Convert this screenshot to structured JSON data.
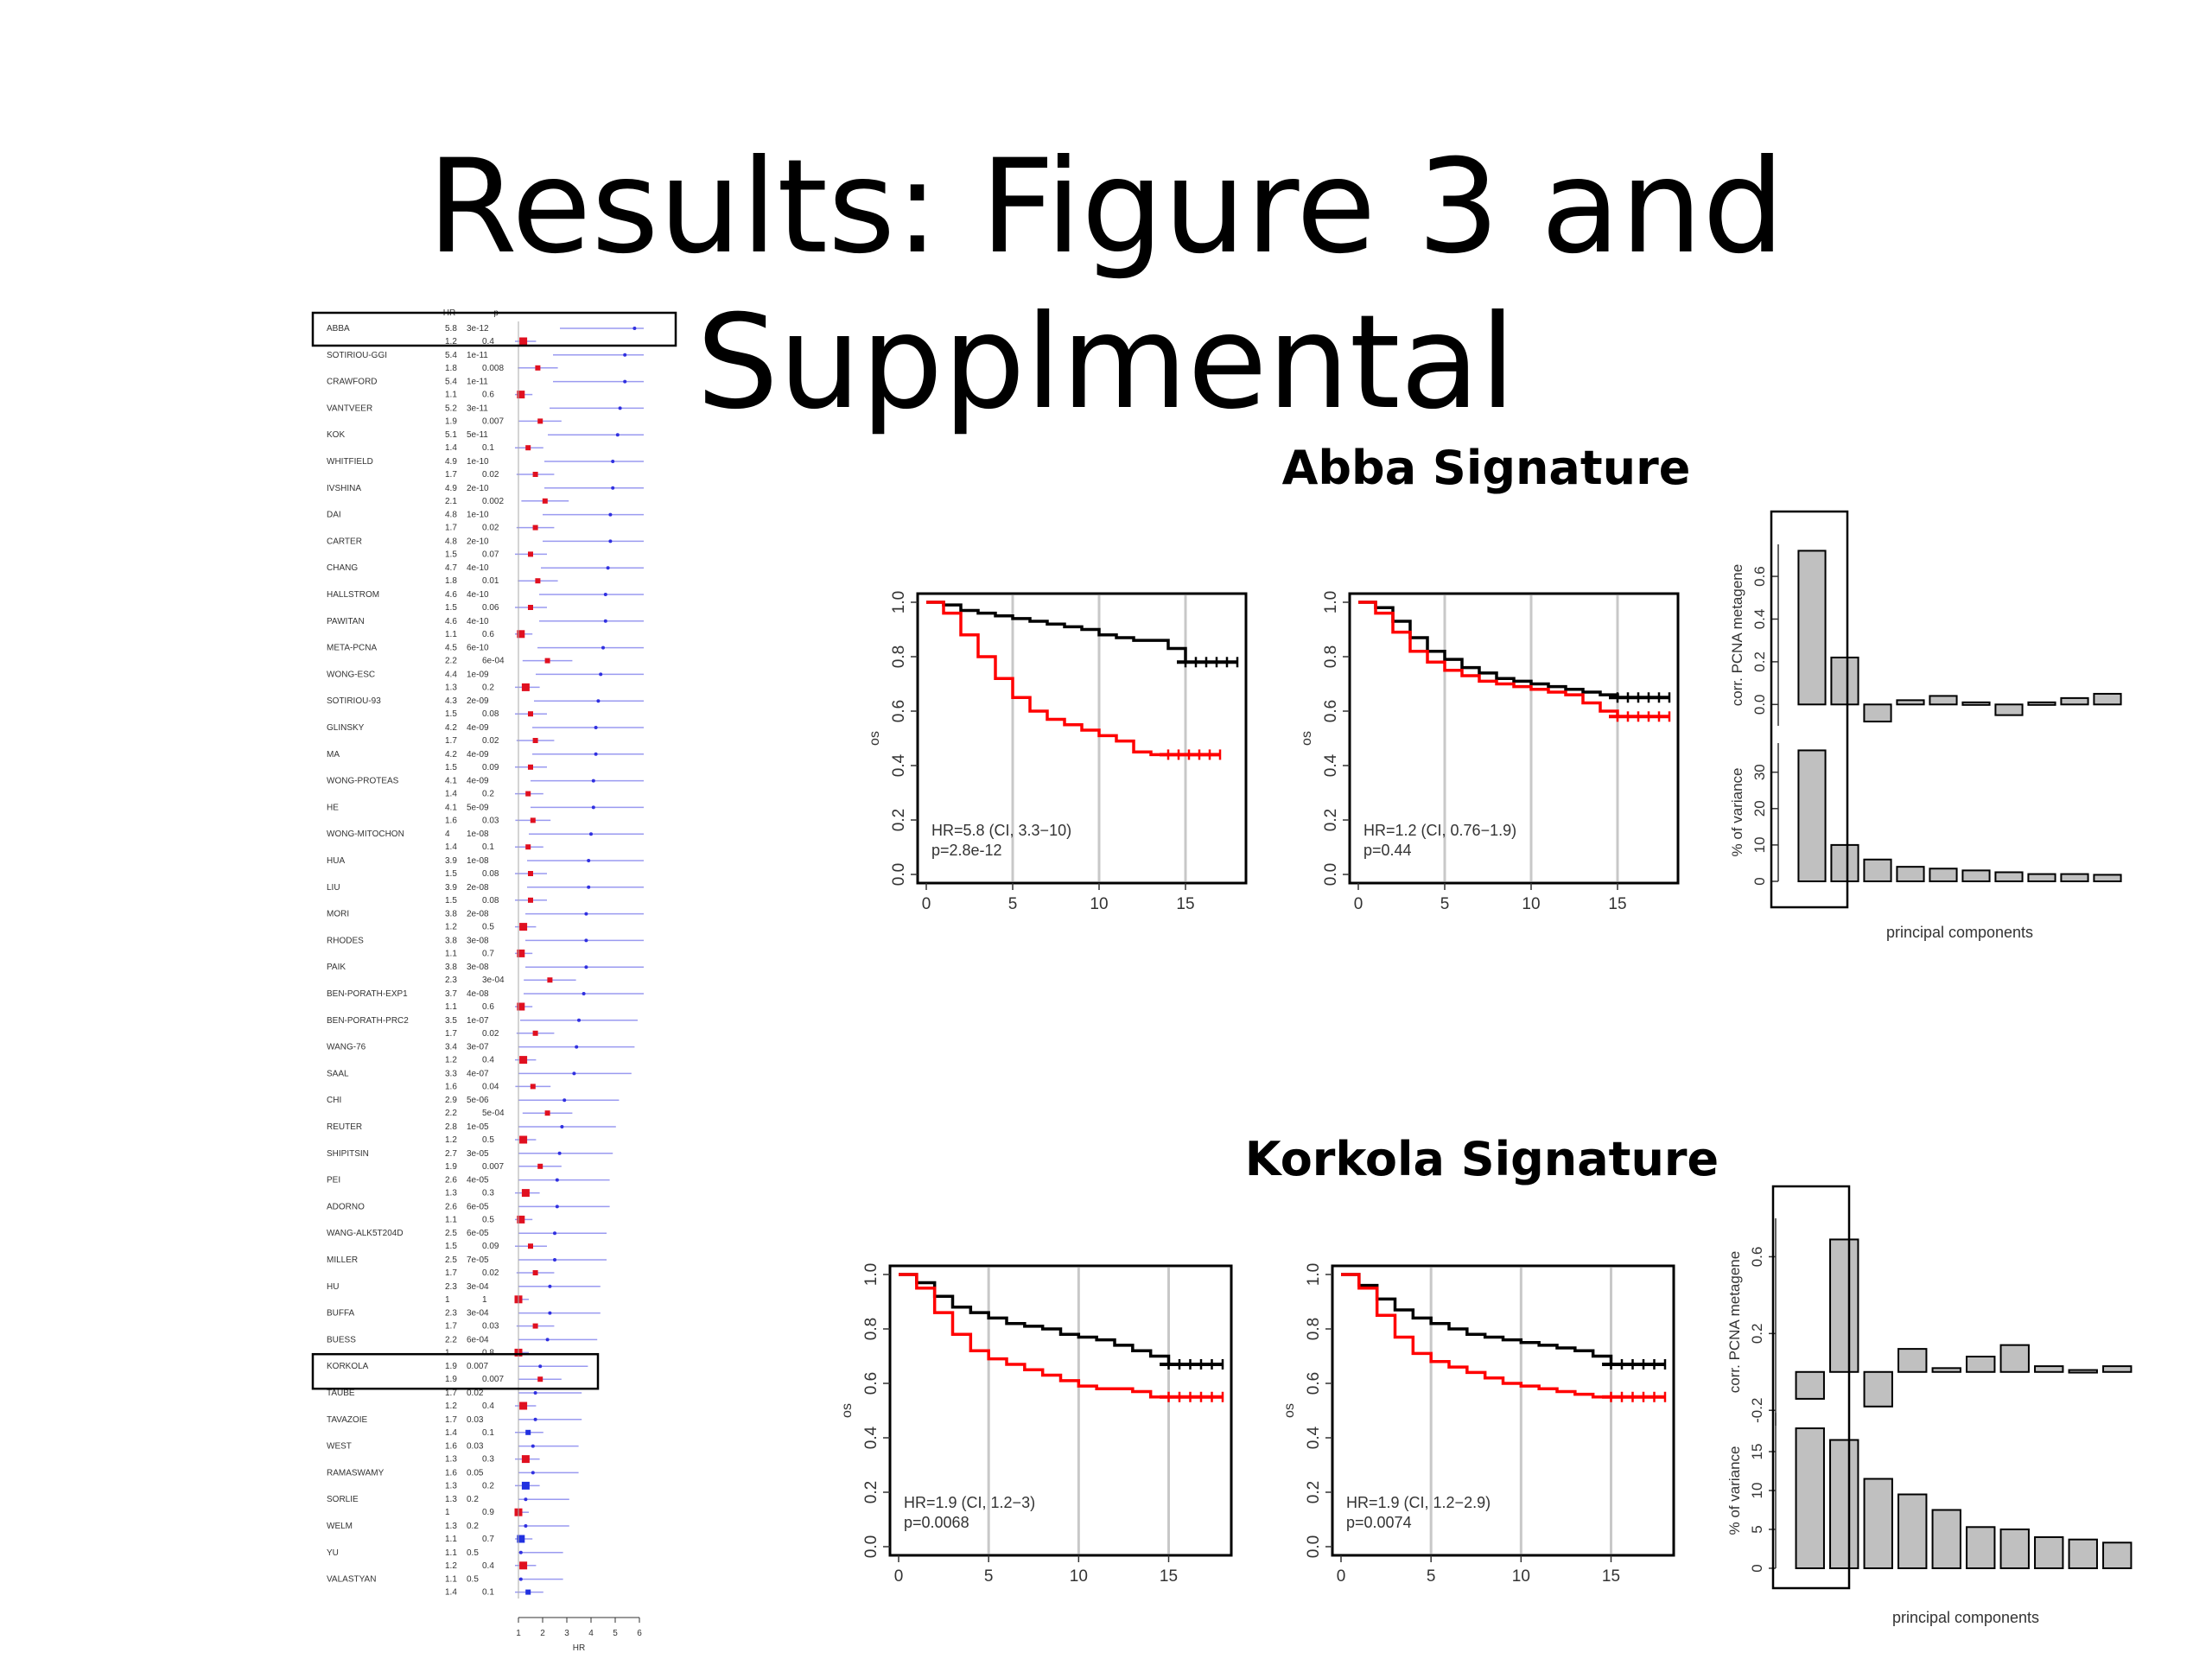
{
  "slide": {
    "title": "Results: Figure 3 and Supplmental"
  },
  "forest": {
    "header_hr": "HR",
    "header_p": "p",
    "xlabel": "HR",
    "xticks": [
      1,
      2,
      3,
      4,
      5,
      6
    ],
    "xlim": [
      1,
      6
    ],
    "highlighted": [
      "ABBA",
      "KORKOLA"
    ],
    "rows": [
      {
        "name": "ABBA",
        "hr1": "5.8",
        "p1": "3e-12",
        "hr2": "1.2",
        "p2": "0.4",
        "h1": 5.8,
        "h2": 1.2,
        "c2": "red"
      },
      {
        "name": "SOTIRIOU-GGI",
        "hr1": "5.4",
        "p1": "1e-11",
        "hr2": "1.8",
        "p2": "0.008",
        "h1": 5.4,
        "h2": 1.8,
        "c2": "red"
      },
      {
        "name": "CRAWFORD",
        "hr1": "5.4",
        "p1": "1e-11",
        "hr2": "1.1",
        "p2": "0.6",
        "h1": 5.4,
        "h2": 1.1,
        "c2": "red"
      },
      {
        "name": "VANTVEER",
        "hr1": "5.2",
        "p1": "3e-11",
        "hr2": "1.9",
        "p2": "0.007",
        "h1": 5.2,
        "h2": 1.9,
        "c2": "red"
      },
      {
        "name": "KOK",
        "hr1": "5.1",
        "p1": "5e-11",
        "hr2": "1.4",
        "p2": "0.1",
        "h1": 5.1,
        "h2": 1.4,
        "c2": "red"
      },
      {
        "name": "WHITFIELD",
        "hr1": "4.9",
        "p1": "1e-10",
        "hr2": "1.7",
        "p2": "0.02",
        "h1": 4.9,
        "h2": 1.7,
        "c2": "red"
      },
      {
        "name": "IVSHINA",
        "hr1": "4.9",
        "p1": "2e-10",
        "hr2": "2.1",
        "p2": "0.002",
        "h1": 4.9,
        "h2": 2.1,
        "c2": "red"
      },
      {
        "name": "DAI",
        "hr1": "4.8",
        "p1": "1e-10",
        "hr2": "1.7",
        "p2": "0.02",
        "h1": 4.8,
        "h2": 1.7,
        "c2": "red"
      },
      {
        "name": "CARTER",
        "hr1": "4.8",
        "p1": "2e-10",
        "hr2": "1.5",
        "p2": "0.07",
        "h1": 4.8,
        "h2": 1.5,
        "c2": "red"
      },
      {
        "name": "CHANG",
        "hr1": "4.7",
        "p1": "4e-10",
        "hr2": "1.8",
        "p2": "0.01",
        "h1": 4.7,
        "h2": 1.8,
        "c2": "red"
      },
      {
        "name": "HALLSTROM",
        "hr1": "4.6",
        "p1": "4e-10",
        "hr2": "1.5",
        "p2": "0.06",
        "h1": 4.6,
        "h2": 1.5,
        "c2": "red"
      },
      {
        "name": "PAWITAN",
        "hr1": "4.6",
        "p1": "4e-10",
        "hr2": "1.1",
        "p2": "0.6",
        "h1": 4.6,
        "h2": 1.1,
        "c2": "red"
      },
      {
        "name": "META-PCNA",
        "hr1": "4.5",
        "p1": "6e-10",
        "hr2": "2.2",
        "p2": "6e-04",
        "h1": 4.5,
        "h2": 2.2,
        "c2": "red"
      },
      {
        "name": "WONG-ESC",
        "hr1": "4.4",
        "p1": "1e-09",
        "hr2": "1.3",
        "p2": "0.2",
        "h1": 4.4,
        "h2": 1.3,
        "c2": "red"
      },
      {
        "name": "SOTIRIOU-93",
        "hr1": "4.3",
        "p1": "2e-09",
        "hr2": "1.5",
        "p2": "0.08",
        "h1": 4.3,
        "h2": 1.5,
        "c2": "red"
      },
      {
        "name": "GLINSKY",
        "hr1": "4.2",
        "p1": "4e-09",
        "hr2": "1.7",
        "p2": "0.02",
        "h1": 4.2,
        "h2": 1.7,
        "c2": "red"
      },
      {
        "name": "MA",
        "hr1": "4.2",
        "p1": "4e-09",
        "hr2": "1.5",
        "p2": "0.09",
        "h1": 4.2,
        "h2": 1.5,
        "c2": "red"
      },
      {
        "name": "WONG-PROTEAS",
        "hr1": "4.1",
        "p1": "4e-09",
        "hr2": "1.4",
        "p2": "0.2",
        "h1": 4.1,
        "h2": 1.4,
        "c2": "red"
      },
      {
        "name": "HE",
        "hr1": "4.1",
        "p1": "5e-09",
        "hr2": "1.6",
        "p2": "0.03",
        "h1": 4.1,
        "h2": 1.6,
        "c2": "red"
      },
      {
        "name": "WONG-MITOCHON",
        "hr1": "4",
        "p1": "1e-08",
        "hr2": "1.4",
        "p2": "0.1",
        "h1": 4.0,
        "h2": 1.4,
        "c2": "red"
      },
      {
        "name": "HUA",
        "hr1": "3.9",
        "p1": "1e-08",
        "hr2": "1.5",
        "p2": "0.08",
        "h1": 3.9,
        "h2": 1.5,
        "c2": "red"
      },
      {
        "name": "LIU",
        "hr1": "3.9",
        "p1": "2e-08",
        "hr2": "1.5",
        "p2": "0.08",
        "h1": 3.9,
        "h2": 1.5,
        "c2": "red"
      },
      {
        "name": "MORI",
        "hr1": "3.8",
        "p1": "2e-08",
        "hr2": "1.2",
        "p2": "0.5",
        "h1": 3.8,
        "h2": 1.2,
        "c2": "red"
      },
      {
        "name": "RHODES",
        "hr1": "3.8",
        "p1": "3e-08",
        "hr2": "1.1",
        "p2": "0.7",
        "h1": 3.8,
        "h2": 1.1,
        "c2": "red"
      },
      {
        "name": "PAIK",
        "hr1": "3.8",
        "p1": "3e-08",
        "hr2": "2.3",
        "p2": "3e-04",
        "h1": 3.8,
        "h2": 2.3,
        "c2": "red"
      },
      {
        "name": "BEN-PORATH-EXP1",
        "hr1": "3.7",
        "p1": "4e-08",
        "hr2": "1.1",
        "p2": "0.6",
        "h1": 3.7,
        "h2": 1.1,
        "c2": "red"
      },
      {
        "name": "BEN-PORATH-PRC2",
        "hr1": "3.5",
        "p1": "1e-07",
        "hr2": "1.7",
        "p2": "0.02",
        "h1": 3.5,
        "h2": 1.7,
        "c2": "red"
      },
      {
        "name": "WANG-76",
        "hr1": "3.4",
        "p1": "3e-07",
        "hr2": "1.2",
        "p2": "0.4",
        "h1": 3.4,
        "h2": 1.2,
        "c2": "red"
      },
      {
        "name": "SAAL",
        "hr1": "3.3",
        "p1": "4e-07",
        "hr2": "1.6",
        "p2": "0.04",
        "h1": 3.3,
        "h2": 1.6,
        "c2": "red"
      },
      {
        "name": "CHI",
        "hr1": "2.9",
        "p1": "5e-06",
        "hr2": "2.2",
        "p2": "5e-04",
        "h1": 2.9,
        "h2": 2.2,
        "c2": "red"
      },
      {
        "name": "REUTER",
        "hr1": "2.8",
        "p1": "1e-05",
        "hr2": "1.2",
        "p2": "0.5",
        "h1": 2.8,
        "h2": 1.2,
        "c2": "red"
      },
      {
        "name": "SHIPITSIN",
        "hr1": "2.7",
        "p1": "3e-05",
        "hr2": "1.9",
        "p2": "0.007",
        "h1": 2.7,
        "h2": 1.9,
        "c2": "red"
      },
      {
        "name": "PEI",
        "hr1": "2.6",
        "p1": "4e-05",
        "hr2": "1.3",
        "p2": "0.3",
        "h1": 2.6,
        "h2": 1.3,
        "c2": "red"
      },
      {
        "name": "ADORNO",
        "hr1": "2.6",
        "p1": "6e-05",
        "hr2": "1.1",
        "p2": "0.5",
        "h1": 2.6,
        "h2": 1.1,
        "c2": "red"
      },
      {
        "name": "WANG-ALK5T204D",
        "hr1": "2.5",
        "p1": "6e-05",
        "hr2": "1.5",
        "p2": "0.09",
        "h1": 2.5,
        "h2": 1.5,
        "c2": "red"
      },
      {
        "name": "MILLER",
        "hr1": "2.5",
        "p1": "7e-05",
        "hr2": "1.7",
        "p2": "0.02",
        "h1": 2.5,
        "h2": 1.7,
        "c2": "red"
      },
      {
        "name": "HU",
        "hr1": "2.3",
        "p1": "3e-04",
        "hr2": "1",
        "p2": "1",
        "h1": 2.3,
        "h2": 1.0,
        "c2": "red"
      },
      {
        "name": "BUFFA",
        "hr1": "2.3",
        "p1": "3e-04",
        "hr2": "1.7",
        "p2": "0.03",
        "h1": 2.3,
        "h2": 1.7,
        "c2": "red"
      },
      {
        "name": "BUESS",
        "hr1": "2.2",
        "p1": "6e-04",
        "hr2": "1",
        "p2": "0.8",
        "h1": 2.2,
        "h2": 1.0,
        "c2": "red"
      },
      {
        "name": "KORKOLA",
        "hr1": "1.9",
        "p1": "0.007",
        "hr2": "1.9",
        "p2": "0.007",
        "h1": 1.9,
        "h2": 1.9,
        "c2": "red"
      },
      {
        "name": "TAUBE",
        "hr1": "1.7",
        "p1": "0.02",
        "hr2": "1.2",
        "p2": "0.4",
        "h1": 1.7,
        "h2": 1.2,
        "c2": "red"
      },
      {
        "name": "TAVAZOIE",
        "hr1": "1.7",
        "p1": "0.03",
        "hr2": "1.4",
        "p2": "0.1",
        "h1": 1.7,
        "h2": 1.4,
        "c2": "red"
      },
      {
        "name": "WEST",
        "hr1": "1.6",
        "p1": "0.03",
        "hr2": "1.3",
        "p2": "0.3",
        "h1": 1.6,
        "h2": 1.3,
        "c2": "red"
      },
      {
        "name": "RAMASWAMY",
        "hr1": "1.6",
        "p1": "0.05",
        "hr2": "1.3",
        "p2": "0.2",
        "h1": 1.6,
        "h2": 1.3,
        "c2": "red"
      },
      {
        "name": "SORLIE",
        "hr1": "1.3",
        "p1": "0.2",
        "hr2": "1",
        "p2": "0.9",
        "h1": 1.3,
        "h2": 1.0,
        "c2": "red"
      },
      {
        "name": "WELM",
        "hr1": "1.3",
        "p1": "0.2",
        "hr2": "1.1",
        "p2": "0.7",
        "h1": 1.3,
        "h2": 1.1,
        "c2": "red"
      },
      {
        "name": "YU",
        "hr1": "1.1",
        "p1": "0.5",
        "hr2": "1.2",
        "p2": "0.4",
        "h1": 1.1,
        "h2": 1.2,
        "c2": "red"
      },
      {
        "name": "VALASTYAN",
        "hr1": "1.1",
        "p1": "0.5",
        "hr2": "1.4",
        "p2": "0.1",
        "h1": 1.1,
        "h2": 1.4,
        "c2": "red"
      }
    ]
  },
  "abba": {
    "title": "Abba Signature",
    "km1": {
      "hr_text": "HR=5.8 (CI, 3.3−10)",
      "p_text": "p=2.8e-12"
    },
    "km2": {
      "hr_text": "HR=1.2 (CI, 0.76−1.9)",
      "p_text": "p=0.44"
    },
    "bar_top_ylabel": "corr. PCNA metagene",
    "bar_bottom_ylabel": "% of variance",
    "xlabel": "principal components"
  },
  "korkola": {
    "title": "Korkola Signature",
    "km1": {
      "hr_text": "HR=1.9 (CI, 1.2−3)",
      "p_text": "p=0.0068"
    },
    "km2": {
      "hr_text": "HR=1.9 (CI, 1.2−2.9)",
      "p_text": "p=0.0074"
    },
    "bar_top_ylabel": "corr. PCNA metagene",
    "bar_bottom_ylabel": "% of variance",
    "xlabel": "principal components"
  },
  "km_axes": {
    "ylabel": "os",
    "xticks": [
      0,
      5,
      10,
      15
    ],
    "yticks": [
      "0.0",
      "0.2",
      "0.4",
      "0.6",
      "0.8",
      "1.0"
    ]
  },
  "chart_data": [
    {
      "type": "scatter",
      "name_note": "forest plot",
      "xlabel": "HR",
      "xlim": [
        1,
        6
      ],
      "xticks": [
        1,
        2,
        3,
        4,
        5,
        6
      ]
    },
    {
      "type": "line",
      "xlim": [
        0,
        18
      ],
      "ylim": [
        0,
        1
      ],
      "xticks": [
        0,
        5,
        10,
        15
      ],
      "series": [
        {
          "color": "#000000",
          "x": [
            0,
            1,
            2,
            3,
            4,
            5,
            6,
            7,
            8,
            9,
            10,
            11,
            12,
            13,
            14,
            15,
            16,
            17,
            18
          ],
          "y": [
            1,
            0.99,
            0.97,
            0.96,
            0.95,
            0.94,
            0.93,
            0.92,
            0.91,
            0.9,
            0.88,
            0.87,
            0.86,
            0.86,
            0.83,
            0.78,
            0.78,
            0.78,
            0.78
          ]
        },
        {
          "color": "#ff0000",
          "x": [
            0,
            1,
            2,
            3,
            4,
            5,
            6,
            7,
            8,
            9,
            10,
            11,
            12,
            13,
            14,
            15,
            16,
            17
          ],
          "y": [
            1,
            0.96,
            0.88,
            0.8,
            0.72,
            0.65,
            0.6,
            0.57,
            0.55,
            0.53,
            0.51,
            0.49,
            0.45,
            0.44,
            0.44,
            0.44,
            0.44,
            0.44
          ]
        }
      ],
      "annotation": [
        "HR=5.8 (CI, 3.3−10)",
        "p=2.8e-12"
      ]
    },
    {
      "type": "line",
      "xlim": [
        0,
        18
      ],
      "ylim": [
        0,
        1
      ],
      "xticks": [
        0,
        5,
        10,
        15
      ],
      "series": [
        {
          "color": "#000000",
          "x": [
            0,
            1,
            2,
            3,
            4,
            5,
            6,
            7,
            8,
            9,
            10,
            11,
            12,
            13,
            14,
            15,
            16,
            17,
            18
          ],
          "y": [
            1,
            0.98,
            0.93,
            0.87,
            0.82,
            0.79,
            0.76,
            0.74,
            0.72,
            0.71,
            0.7,
            0.69,
            0.68,
            0.67,
            0.66,
            0.65,
            0.65,
            0.65,
            0.65
          ]
        },
        {
          "color": "#ff0000",
          "x": [
            0,
            1,
            2,
            3,
            4,
            5,
            6,
            7,
            8,
            9,
            10,
            11,
            12,
            13,
            14,
            15,
            16,
            17,
            18
          ],
          "y": [
            1,
            0.96,
            0.89,
            0.82,
            0.78,
            0.75,
            0.73,
            0.71,
            0.7,
            0.69,
            0.68,
            0.67,
            0.66,
            0.63,
            0.6,
            0.58,
            0.58,
            0.58,
            0.58
          ]
        }
      ],
      "annotation": [
        "HR=1.2 (CI, 0.76−1.9)",
        "p=0.44"
      ]
    },
    {
      "type": "bar",
      "ylabel": "corr. PCNA metagene",
      "values": [
        0.72,
        0.22,
        -0.08,
        0.02,
        0.04,
        0.01,
        -0.05,
        0.01,
        0.03,
        0.05
      ],
      "ylim": [
        -0.1,
        0.75
      ],
      "yticks": [
        "0.0",
        "0.2",
        "0.4",
        "0.6"
      ]
    },
    {
      "type": "bar",
      "ylabel": "% of variance",
      "xlabel": "principal components",
      "values": [
        36,
        10,
        6,
        4,
        3.5,
        3,
        2.5,
        2,
        2,
        1.8
      ],
      "ylim": [
        0,
        38
      ],
      "yticks": [
        "0",
        "10",
        "20",
        "30"
      ]
    },
    {
      "type": "line",
      "xlim": [
        0,
        18
      ],
      "ylim": [
        0,
        1
      ],
      "xticks": [
        0,
        5,
        10,
        15
      ],
      "series": [
        {
          "color": "#000000",
          "x": [
            0,
            1,
            2,
            3,
            4,
            5,
            6,
            7,
            8,
            9,
            10,
            11,
            12,
            13,
            14,
            15,
            16,
            17,
            18
          ],
          "y": [
            1,
            0.97,
            0.92,
            0.88,
            0.86,
            0.84,
            0.82,
            0.81,
            0.8,
            0.78,
            0.77,
            0.76,
            0.74,
            0.72,
            0.7,
            0.67,
            0.67,
            0.67,
            0.67
          ]
        },
        {
          "color": "#ff0000",
          "x": [
            0,
            1,
            2,
            3,
            4,
            5,
            6,
            7,
            8,
            9,
            10,
            11,
            12,
            13,
            14,
            15,
            16,
            17,
            18
          ],
          "y": [
            1,
            0.95,
            0.86,
            0.78,
            0.72,
            0.69,
            0.67,
            0.65,
            0.63,
            0.61,
            0.59,
            0.58,
            0.58,
            0.57,
            0.55,
            0.55,
            0.55,
            0.55,
            0.55
          ]
        }
      ],
      "annotation": [
        "HR=1.9 (CI, 1.2−3)",
        "p=0.0068"
      ]
    },
    {
      "type": "line",
      "xlim": [
        0,
        18
      ],
      "ylim": [
        0,
        1
      ],
      "xticks": [
        0,
        5,
        10,
        15
      ],
      "series": [
        {
          "color": "#000000",
          "x": [
            0,
            1,
            2,
            3,
            4,
            5,
            6,
            7,
            8,
            9,
            10,
            11,
            12,
            13,
            14,
            15,
            16,
            17,
            18
          ],
          "y": [
            1,
            0.96,
            0.91,
            0.87,
            0.84,
            0.82,
            0.8,
            0.78,
            0.77,
            0.76,
            0.75,
            0.74,
            0.73,
            0.72,
            0.7,
            0.67,
            0.67,
            0.67,
            0.67
          ]
        },
        {
          "color": "#ff0000",
          "x": [
            0,
            1,
            2,
            3,
            4,
            5,
            6,
            7,
            8,
            9,
            10,
            11,
            12,
            13,
            14,
            15,
            16,
            17,
            18
          ],
          "y": [
            1,
            0.95,
            0.85,
            0.77,
            0.71,
            0.68,
            0.66,
            0.64,
            0.62,
            0.6,
            0.59,
            0.58,
            0.57,
            0.56,
            0.55,
            0.55,
            0.55,
            0.55,
            0.55
          ]
        }
      ],
      "annotation": [
        "HR=1.9 (CI, 1.2−2.9)",
        "p=0.0074"
      ]
    },
    {
      "type": "bar",
      "ylabel": "corr. PCNA metagene",
      "values": [
        -0.14,
        0.69,
        -0.18,
        0.12,
        0.02,
        0.08,
        0.14,
        0.03,
        0.01,
        0.03
      ],
      "ylim": [
        -0.28,
        0.8
      ],
      "yticks": [
        "-0.2",
        "0.2",
        "0.6"
      ]
    },
    {
      "type": "bar",
      "ylabel": "% of variance",
      "xlabel": "principal components",
      "values": [
        18,
        16.5,
        11.5,
        9.5,
        7.5,
        5.3,
        5,
        4,
        3.7,
        3.3
      ],
      "ylim": [
        0,
        20
      ],
      "yticks": [
        "0",
        "5",
        "10",
        "15"
      ]
    }
  ]
}
